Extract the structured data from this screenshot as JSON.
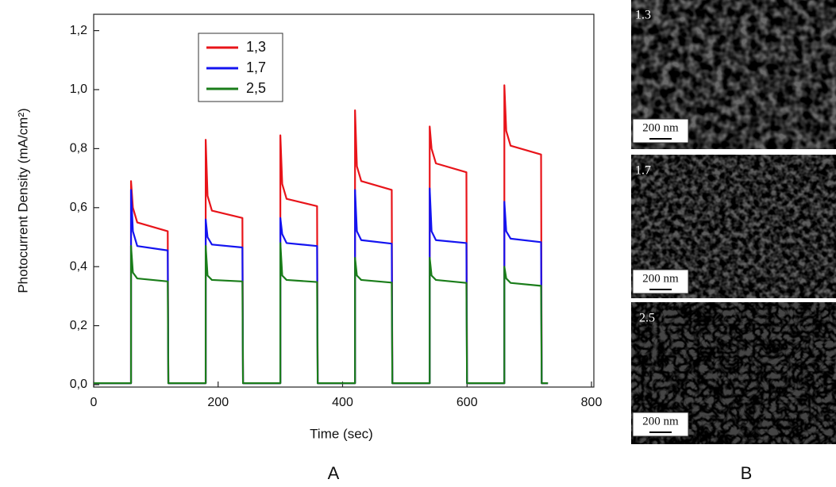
{
  "chart_data": {
    "type": "line",
    "x_label": "Time (sec)",
    "y_label": "Photocurrent Density (mA/cm²)",
    "x": [
      0,
      60,
      60,
      63,
      70,
      119,
      120,
      180,
      180,
      183,
      190,
      239,
      240,
      300,
      300,
      303,
      310,
      359,
      360,
      420,
      420,
      423,
      430,
      479,
      480,
      540,
      540,
      543,
      550,
      599,
      600,
      660,
      660,
      663,
      670,
      719,
      720,
      730
    ],
    "series": [
      {
        "name": "1,3",
        "color": "#e8141a",
        "values": [
          0.005,
          0.005,
          0.69,
          0.6,
          0.55,
          0.52,
          0.005,
          0.005,
          0.83,
          0.64,
          0.59,
          0.565,
          0.005,
          0.005,
          0.845,
          0.68,
          0.63,
          0.605,
          0.005,
          0.005,
          0.93,
          0.74,
          0.69,
          0.66,
          0.005,
          0.005,
          0.875,
          0.8,
          0.75,
          0.72,
          0.005,
          0.005,
          1.015,
          0.86,
          0.81,
          0.78,
          0.005,
          0.005
        ]
      },
      {
        "name": "1,7",
        "color": "#1414f0",
        "values": [
          0.005,
          0.005,
          0.66,
          0.52,
          0.47,
          0.455,
          0.005,
          0.005,
          0.56,
          0.5,
          0.475,
          0.465,
          0.005,
          0.005,
          0.565,
          0.51,
          0.48,
          0.47,
          0.005,
          0.005,
          0.66,
          0.52,
          0.49,
          0.478,
          0.005,
          0.005,
          0.665,
          0.52,
          0.49,
          0.48,
          0.005,
          0.005,
          0.62,
          0.52,
          0.495,
          0.483,
          0.005,
          0.005
        ]
      },
      {
        "name": "2,5",
        "color": "#1a7d1a",
        "values": [
          0.005,
          0.005,
          0.47,
          0.38,
          0.36,
          0.35,
          0.005,
          0.005,
          0.47,
          0.37,
          0.355,
          0.35,
          0.005,
          0.005,
          0.48,
          0.37,
          0.355,
          0.348,
          0.005,
          0.005,
          0.43,
          0.37,
          0.355,
          0.346,
          0.005,
          0.005,
          0.43,
          0.37,
          0.355,
          0.345,
          0.005,
          0.005,
          0.4,
          0.36,
          0.345,
          0.335,
          0.005,
          0.005
        ]
      }
    ],
    "xlim": [
      0,
      800
    ],
    "xticks": [
      0,
      200,
      400,
      600,
      800
    ],
    "ylim": [
      0,
      1.25
    ],
    "yticks": [
      {
        "value": 0,
        "label": "0,0"
      },
      {
        "value": 0.2,
        "label": "0,2"
      },
      {
        "value": 0.4,
        "label": "0,4"
      },
      {
        "value": 0.6,
        "label": "0,6"
      },
      {
        "value": 0.8,
        "label": "0,8"
      },
      {
        "value": 1.0,
        "label": "1,0"
      },
      {
        "value": 1.2,
        "label": "1,2"
      }
    ],
    "legend": "upper-left"
  },
  "images": [
    {
      "label": "1.3",
      "scale_bar": "200 nm"
    },
    {
      "label": "1.7",
      "scale_bar": "200 nm"
    },
    {
      "label": "2.5",
      "scale_bar": "200 nm"
    }
  ],
  "panel_labels": [
    "A",
    "B"
  ]
}
